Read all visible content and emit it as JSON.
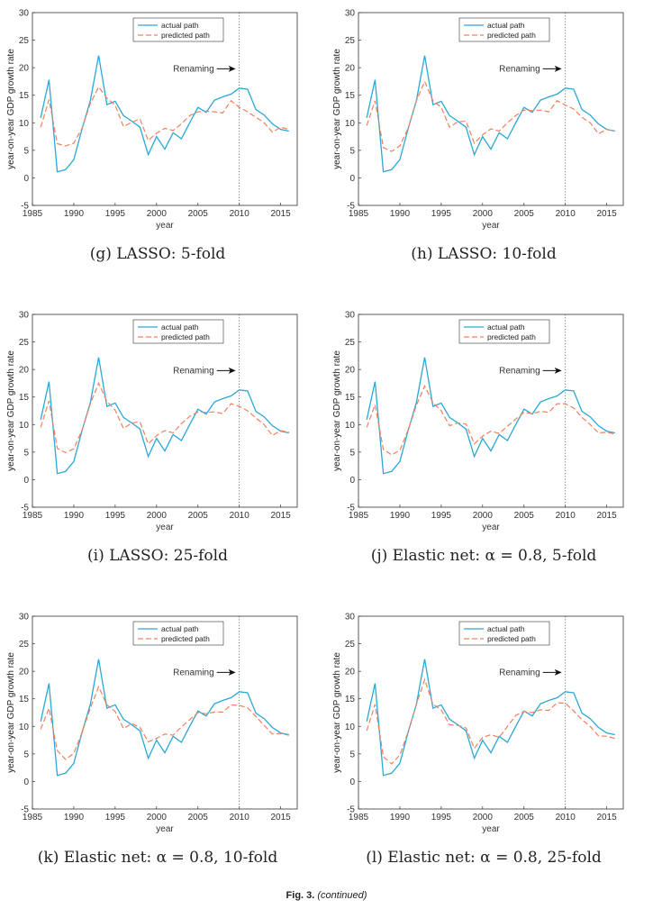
{
  "colors": {
    "actual": "#2aa8d6",
    "predicted": "#f08060",
    "vline": "#555555",
    "axis": "#333333"
  },
  "figure_caption": {
    "label": "Fig. 3.",
    "note": "(continued)"
  },
  "chart_data": [
    {
      "type": "line",
      "caption": "(g) LASSO: 5-fold",
      "xlabel": "year",
      "ylabel": "year-on-year GDP growth rate",
      "xlim": [
        1985,
        2017
      ],
      "ylim": [
        -5,
        30
      ],
      "xticks": [
        1985,
        1990,
        1995,
        2000,
        2005,
        2010,
        2015
      ],
      "yticks": [
        -5,
        0,
        5,
        10,
        15,
        20,
        25,
        30
      ],
      "legend": [
        "actual path",
        "predicted path"
      ],
      "legend_position": "top-center",
      "annotation": {
        "text": "Renaming",
        "x": 2010
      },
      "x": [
        1986,
        1987,
        1988,
        1989,
        1990,
        1991,
        1992,
        1993,
        1994,
        1995,
        1996,
        1997,
        1998,
        1999,
        2000,
        2001,
        2002,
        2003,
        2004,
        2005,
        2006,
        2007,
        2008,
        2009,
        2010,
        2011,
        2012,
        2013,
        2014,
        2015,
        2016
      ],
      "series": [
        {
          "name": "actual path",
          "values": [
            10.9,
            17.8,
            1.1,
            1.5,
            3.3,
            8.9,
            14.0,
            22.2,
            13.3,
            13.9,
            11.3,
            10.3,
            9.2,
            4.2,
            7.5,
            5.2,
            8.2,
            7.1,
            10.0,
            12.8,
            11.9,
            14.1,
            14.7,
            15.2,
            16.3,
            16.1,
            12.4,
            11.4,
            9.8,
            8.8,
            8.5
          ]
        },
        {
          "name": "predicted path",
          "values": [
            9.2,
            14.2,
            6.2,
            5.8,
            6.3,
            9.0,
            13.5,
            16.5,
            14.5,
            13.2,
            9.3,
            10.1,
            10.7,
            6.8,
            8.1,
            9.0,
            8.6,
            9.8,
            11.3,
            12.0,
            12.1,
            12.0,
            11.8,
            14.0,
            12.8,
            12.0,
            11.0,
            10.0,
            8.3,
            9.2,
            8.8
          ]
        }
      ]
    },
    {
      "type": "line",
      "caption": "(h) LASSO: 10-fold",
      "xlabel": "year",
      "ylabel": "year-on-year GDP growth rate",
      "xlim": [
        1985,
        2017
      ],
      "ylim": [
        -5,
        30
      ],
      "xticks": [
        1985,
        1990,
        1995,
        2000,
        2005,
        2010,
        2015
      ],
      "yticks": [
        -5,
        0,
        5,
        10,
        15,
        20,
        25,
        30
      ],
      "legend": [
        "actual path",
        "predicted path"
      ],
      "legend_position": "top-center",
      "annotation": {
        "text": "Renaming",
        "x": 2010
      },
      "x": [
        1986,
        1987,
        1988,
        1989,
        1990,
        1991,
        1992,
        1993,
        1994,
        1995,
        1996,
        1997,
        1998,
        1999,
        2000,
        2001,
        2002,
        2003,
        2004,
        2005,
        2006,
        2007,
        2008,
        2009,
        2010,
        2011,
        2012,
        2013,
        2014,
        2015,
        2016
      ],
      "series": [
        {
          "name": "actual path",
          "values": [
            10.9,
            17.8,
            1.1,
            1.5,
            3.3,
            8.9,
            14.0,
            22.2,
            13.3,
            13.9,
            11.3,
            10.3,
            9.2,
            4.2,
            7.5,
            5.2,
            8.2,
            7.1,
            10.0,
            12.8,
            11.9,
            14.1,
            14.7,
            15.2,
            16.3,
            16.1,
            12.4,
            11.4,
            9.8,
            8.8,
            8.5
          ]
        },
        {
          "name": "predicted path",
          "values": [
            9.5,
            14.0,
            5.5,
            4.8,
            5.8,
            9.0,
            14.0,
            17.5,
            14.0,
            12.8,
            9.2,
            10.2,
            10.3,
            6.3,
            7.8,
            8.9,
            8.5,
            10.0,
            11.3,
            12.3,
            12.2,
            12.3,
            12.0,
            14.0,
            13.2,
            12.5,
            11.0,
            10.0,
            8.0,
            8.8,
            8.5
          ]
        }
      ]
    },
    {
      "type": "line",
      "caption": "(i) LASSO: 25-fold",
      "xlabel": "year",
      "ylabel": "year-on-year GDP growth rate",
      "xlim": [
        1985,
        2017
      ],
      "ylim": [
        -5,
        30
      ],
      "xticks": [
        1985,
        1990,
        1995,
        2000,
        2005,
        2010,
        2015
      ],
      "yticks": [
        -5,
        0,
        5,
        10,
        15,
        20,
        25,
        30
      ],
      "legend": [
        "actual path",
        "predicted path"
      ],
      "legend_position": "top-center",
      "annotation": {
        "text": "Renaming",
        "x": 2010
      },
      "x": [
        1986,
        1987,
        1988,
        1989,
        1990,
        1991,
        1992,
        1993,
        1994,
        1995,
        1996,
        1997,
        1998,
        1999,
        2000,
        2001,
        2002,
        2003,
        2004,
        2005,
        2006,
        2007,
        2008,
        2009,
        2010,
        2011,
        2012,
        2013,
        2014,
        2015,
        2016
      ],
      "series": [
        {
          "name": "actual path",
          "values": [
            10.9,
            17.8,
            1.1,
            1.5,
            3.3,
            8.9,
            14.0,
            22.2,
            13.3,
            13.9,
            11.3,
            10.3,
            9.2,
            4.2,
            7.5,
            5.2,
            8.2,
            7.1,
            10.0,
            12.8,
            11.9,
            14.1,
            14.7,
            15.2,
            16.3,
            16.1,
            12.4,
            11.4,
            9.8,
            8.8,
            8.5
          ]
        },
        {
          "name": "predicted path",
          "values": [
            9.5,
            14.3,
            5.7,
            4.9,
            5.6,
            9.0,
            13.8,
            17.5,
            14.2,
            12.6,
            9.3,
            10.3,
            10.5,
            6.5,
            8.0,
            8.9,
            8.5,
            10.2,
            11.5,
            12.3,
            12.2,
            12.3,
            12.0,
            13.8,
            13.3,
            12.5,
            11.2,
            10.0,
            8.0,
            8.9,
            8.6
          ]
        }
      ]
    },
    {
      "type": "line",
      "caption": "(j) Elastic net: α = 0.8, 5-fold",
      "xlabel": "year",
      "ylabel": "year-on-year GDP growth rate",
      "xlim": [
        1985,
        2017
      ],
      "ylim": [
        -5,
        30
      ],
      "xticks": [
        1985,
        1990,
        1995,
        2000,
        2005,
        2010,
        2015
      ],
      "yticks": [
        -5,
        0,
        5,
        10,
        15,
        20,
        25,
        30
      ],
      "legend": [
        "actual path",
        "predicted path"
      ],
      "legend_position": "top-center",
      "annotation": {
        "text": "Renaming",
        "x": 2010
      },
      "x": [
        1986,
        1987,
        1988,
        1989,
        1990,
        1991,
        1992,
        1993,
        1994,
        1995,
        1996,
        1997,
        1998,
        1999,
        2000,
        2001,
        2002,
        2003,
        2004,
        2005,
        2006,
        2007,
        2008,
        2009,
        2010,
        2011,
        2012,
        2013,
        2014,
        2015,
        2016
      ],
      "series": [
        {
          "name": "actual path",
          "values": [
            10.9,
            17.8,
            1.1,
            1.5,
            3.3,
            8.9,
            14.0,
            22.2,
            13.3,
            13.9,
            11.3,
            10.3,
            9.2,
            4.2,
            7.5,
            5.2,
            8.2,
            7.1,
            10.0,
            12.8,
            11.9,
            14.1,
            14.7,
            15.2,
            16.3,
            16.1,
            12.4,
            11.4,
            9.8,
            8.8,
            8.5
          ]
        },
        {
          "name": "predicted path",
          "values": [
            9.5,
            13.6,
            5.5,
            4.5,
            5.3,
            9.0,
            13.5,
            17.0,
            14.0,
            12.5,
            9.8,
            10.3,
            10.1,
            6.5,
            7.9,
            8.8,
            8.4,
            9.7,
            11.0,
            12.2,
            12.0,
            12.4,
            12.2,
            13.8,
            13.8,
            13.0,
            11.3,
            10.0,
            8.5,
            8.6,
            8.3
          ]
        }
      ]
    },
    {
      "type": "line",
      "caption": "(k) Elastic net: α = 0.8, 10-fold",
      "xlabel": "year",
      "ylabel": "year-on-year GDP growth rate",
      "xlim": [
        1985,
        2017
      ],
      "ylim": [
        -5,
        30
      ],
      "xticks": [
        1985,
        1990,
        1995,
        2000,
        2005,
        2010,
        2015
      ],
      "yticks": [
        -5,
        0,
        5,
        10,
        15,
        20,
        25,
        30
      ],
      "legend": [
        "actual path",
        "predicted path"
      ],
      "legend_position": "top-center",
      "annotation": {
        "text": "Renaming",
        "x": 2010
      },
      "x": [
        1986,
        1987,
        1988,
        1989,
        1990,
        1991,
        1992,
        1993,
        1994,
        1995,
        1996,
        1997,
        1998,
        1999,
        2000,
        2001,
        2002,
        2003,
        2004,
        2005,
        2006,
        2007,
        2008,
        2009,
        2010,
        2011,
        2012,
        2013,
        2014,
        2015,
        2016
      ],
      "series": [
        {
          "name": "actual path",
          "values": [
            10.9,
            17.8,
            1.1,
            1.5,
            3.3,
            8.9,
            14.0,
            22.2,
            13.3,
            13.9,
            11.3,
            10.3,
            9.2,
            4.2,
            7.5,
            5.2,
            8.2,
            7.1,
            10.0,
            12.8,
            11.9,
            14.1,
            14.7,
            15.2,
            16.3,
            16.1,
            12.4,
            11.4,
            9.8,
            8.8,
            8.5
          ]
        },
        {
          "name": "predicted path",
          "values": [
            9.5,
            13.3,
            5.6,
            4.0,
            5.1,
            8.9,
            13.3,
            17.2,
            13.9,
            12.7,
            9.6,
            10.5,
            9.8,
            7.2,
            7.8,
            8.6,
            8.4,
            9.9,
            11.2,
            12.5,
            12.3,
            12.6,
            12.6,
            13.9,
            13.8,
            13.4,
            11.8,
            10.2,
            8.6,
            8.7,
            8.4
          ]
        }
      ]
    },
    {
      "type": "line",
      "caption": "(l) Elastic net: α = 0.8, 25-fold",
      "xlabel": "year",
      "ylabel": "year-on-year GDP growth rate",
      "xlim": [
        1985,
        2017
      ],
      "ylim": [
        -5,
        30
      ],
      "xticks": [
        1985,
        1990,
        1995,
        2000,
        2005,
        2010,
        2015
      ],
      "yticks": [
        -5,
        0,
        5,
        10,
        15,
        20,
        25,
        30
      ],
      "legend": [
        "actual path",
        "predicted path"
      ],
      "legend_position": "top-center",
      "annotation": {
        "text": "Renaming",
        "x": 2010
      },
      "x": [
        1986,
        1987,
        1988,
        1989,
        1990,
        1991,
        1992,
        1993,
        1994,
        1995,
        1996,
        1997,
        1998,
        1999,
        2000,
        2001,
        2002,
        2003,
        2004,
        2005,
        2006,
        2007,
        2008,
        2009,
        2010,
        2011,
        2012,
        2013,
        2014,
        2015,
        2016
      ],
      "series": [
        {
          "name": "actual path",
          "values": [
            10.9,
            17.8,
            1.1,
            1.5,
            3.3,
            8.9,
            14.0,
            22.2,
            13.3,
            13.9,
            11.3,
            10.3,
            9.2,
            4.2,
            7.5,
            5.2,
            8.2,
            7.1,
            10.0,
            12.8,
            11.9,
            14.1,
            14.7,
            15.2,
            16.3,
            16.1,
            12.4,
            11.4,
            9.8,
            8.8,
            8.5
          ]
        },
        {
          "name": "predicted path",
          "values": [
            9.2,
            14.0,
            4.5,
            3.2,
            4.8,
            9.0,
            14.0,
            18.5,
            14.0,
            13.0,
            10.3,
            10.2,
            9.7,
            6.0,
            8.0,
            8.5,
            8.0,
            10.0,
            12.0,
            12.7,
            12.5,
            13.0,
            12.9,
            14.3,
            14.2,
            12.8,
            11.2,
            10.0,
            8.3,
            8.2,
            7.8
          ]
        }
      ]
    }
  ]
}
